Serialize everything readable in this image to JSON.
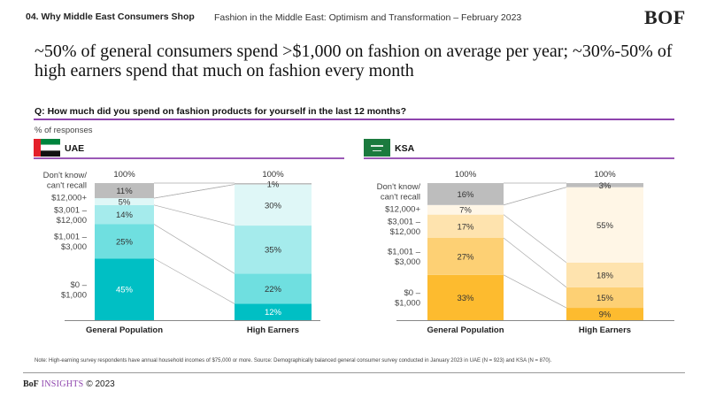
{
  "header": {
    "section": "04. Why Middle East Consumers Shop",
    "report_title": "Fashion in the Middle East: Optimism and Transformation – February 2023",
    "logo": "BOF"
  },
  "headline": "~50% of general consumers spend >$1,000 on fashion on average per year; ~30%-50% of high earners spend that much on fashion every month",
  "question": "Q: How much did you spend on fashion products for yourself in the last 12 months?",
  "unit_label": "% of responses",
  "colors": {
    "accent_purple": "#8e44ad",
    "dont_know_gray": "#bdbdbd",
    "uae": [
      "#00bfc4",
      "#6fdfe0",
      "#a5ebec",
      "#dff7f7"
    ],
    "ksa": [
      "#fdbb2f",
      "#fdd074",
      "#fee3ae",
      "#fff6e6"
    ]
  },
  "chart_data": [
    {
      "type": "bar",
      "stacked": true,
      "title": "UAE",
      "flag_icon": "uae-flag-icon",
      "categories": [
        "General Population",
        "High Earners"
      ],
      "totals": [
        "100%",
        "100%"
      ],
      "ylabel": "% of responses",
      "ylim": [
        0,
        100
      ],
      "series": [
        {
          "name": "$0 – $1,000",
          "label_lines": [
            "$0 –",
            "$1,000"
          ],
          "values": [
            45,
            12
          ]
        },
        {
          "name": "$1,001 – $3,000",
          "label_lines": [
            "$1,001 –",
            "$3,000"
          ],
          "values": [
            25,
            22
          ]
        },
        {
          "name": "$3,001 – $12,000",
          "label_lines": [
            "$3,001 –",
            "$12,000"
          ],
          "values": [
            14,
            35
          ]
        },
        {
          "name": "$12,000+",
          "label_lines": [
            "$12,000+"
          ],
          "values": [
            5,
            30
          ]
        },
        {
          "name": "Don't know/ can't recall",
          "label_lines": [
            "Don't know/",
            "can't recall"
          ],
          "values": [
            11,
            1
          ]
        }
      ]
    },
    {
      "type": "bar",
      "stacked": true,
      "title": "KSA",
      "flag_icon": "ksa-flag-icon",
      "categories": [
        "General Population",
        "High Earners"
      ],
      "totals": [
        "100%",
        "100%"
      ],
      "ylabel": "% of responses",
      "ylim": [
        0,
        100
      ],
      "series": [
        {
          "name": "$0 – $1,000",
          "label_lines": [
            "$0 –",
            "$1,000"
          ],
          "values": [
            33,
            9
          ]
        },
        {
          "name": "$1,001 – $3,000",
          "label_lines": [
            "$1,001 –",
            "$3,000"
          ],
          "values": [
            27,
            15
          ]
        },
        {
          "name": "$3,001 – $12,000",
          "label_lines": [
            "$3,001 –",
            "$12,000"
          ],
          "values": [
            17,
            18
          ]
        },
        {
          "name": "$12,000+",
          "label_lines": [
            "$12,000+"
          ],
          "values": [
            7,
            55
          ]
        },
        {
          "name": "Don't know/ can't recall",
          "label_lines": [
            "Don't know/",
            "can't recall"
          ],
          "values": [
            16,
            3
          ]
        }
      ]
    }
  ],
  "note": "Note: High-earning survey respondents have annual household incomes of $75,000 or more. Source: Demographically balanced general consumer survey conducted in January 2023 in UAE (N = 923) and KSA (N = 870).",
  "footer": {
    "brand": "BoF",
    "insights": "INSIGHTS",
    "copyright": "© 2023"
  }
}
